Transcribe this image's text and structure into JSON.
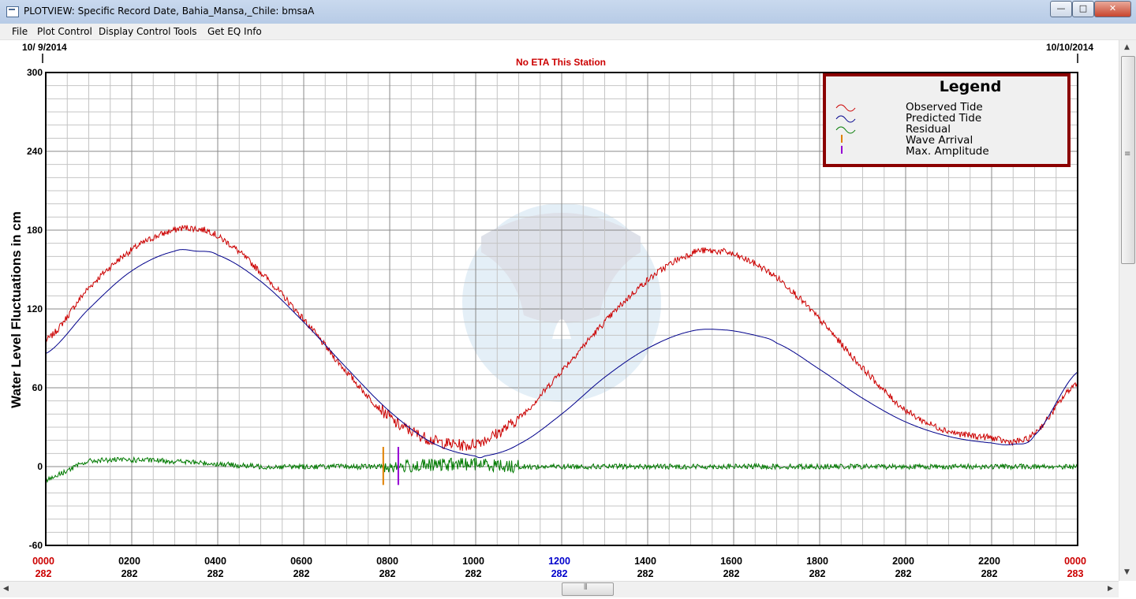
{
  "window": {
    "title": "PLOTVIEW: Specific Record Date, Bahia_Mansa,_Chile: bmsaA",
    "minimize_label": "—",
    "maximize_label": "□",
    "close_label": "✕"
  },
  "menu": [
    {
      "label": "File"
    },
    {
      "label": "Plot Control"
    },
    {
      "label": "Display Control"
    },
    {
      "label": "Tools"
    },
    {
      "label": "Get EQ Info"
    }
  ],
  "plot": {
    "start_date": "10/ 9/2014",
    "end_date": "10/10/2014",
    "eta_message": "No ETA This Station",
    "y_axis_label": "Water Level Fluctuations in cm",
    "colors": {
      "observed": "#cc0000",
      "predicted": "#00008b",
      "residual": "#007a00",
      "wave_arrival": "#e08000",
      "max_amplitude": "#9400d3",
      "frame": "#000000",
      "grid": "#9e9e9e",
      "legend_border": "#8b0000",
      "eta_text": "#cc0000"
    }
  },
  "legend": {
    "title": "Legend",
    "items": [
      {
        "label": "Observed Tide"
      },
      {
        "label": "Predicted Tide"
      },
      {
        "label": "Residual"
      },
      {
        "label": "Wave Arrival"
      },
      {
        "label": "Max. Amplitude"
      }
    ]
  },
  "chart_data": {
    "type": "line",
    "xlabel": "",
    "ylabel": "Water Level Fluctuations in cm",
    "xlim": [
      0,
      24
    ],
    "ylim": [
      -60,
      300
    ],
    "y_ticks": [
      300,
      240,
      180,
      120,
      60,
      0,
      -60
    ],
    "x_ticks": [
      {
        "time": "0000",
        "day": "282",
        "color": "#cc0000"
      },
      {
        "time": "0200",
        "day": "282",
        "color": "#000000"
      },
      {
        "time": "0400",
        "day": "282",
        "color": "#000000"
      },
      {
        "time": "0600",
        "day": "282",
        "color": "#000000"
      },
      {
        "time": "0800",
        "day": "282",
        "color": "#000000"
      },
      {
        "time": "1000",
        "day": "282",
        "color": "#000000"
      },
      {
        "time": "1200",
        "day": "282",
        "color": "#0000cc"
      },
      {
        "time": "1400",
        "day": "282",
        "color": "#000000"
      },
      {
        "time": "1600",
        "day": "282",
        "color": "#000000"
      },
      {
        "time": "1800",
        "day": "282",
        "color": "#000000"
      },
      {
        "time": "2000",
        "day": "282",
        "color": "#000000"
      },
      {
        "time": "2200",
        "day": "282",
        "color": "#000000"
      },
      {
        "time": "0000",
        "day": "283",
        "color": "#cc0000"
      }
    ],
    "series": [
      {
        "name": "Observed Tide",
        "color": "#cc0000",
        "x": [
          0,
          1,
          2,
          3,
          3.5,
          4,
          5,
          6,
          7,
          8,
          8.5,
          9,
          9.5,
          10,
          11,
          12,
          13,
          14,
          15,
          15.5,
          16,
          17,
          18,
          19,
          20,
          21,
          22,
          22.5,
          23,
          24
        ],
        "y": [
          96,
          136,
          165,
          180,
          181,
          175,
          148,
          112,
          72,
          38,
          27,
          20,
          17,
          18,
          37,
          73,
          110,
          142,
          162,
          164,
          161,
          144,
          112,
          75,
          43,
          27,
          22,
          19,
          26,
          64
        ]
      },
      {
        "name": "Predicted Tide",
        "color": "#00008b",
        "x": [
          0,
          1,
          2,
          3,
          3.5,
          4,
          5,
          6,
          7,
          8,
          9,
          10,
          10.2,
          11,
          12,
          13,
          14,
          15,
          15.8,
          16.5,
          17,
          18,
          19,
          20,
          21,
          22,
          22.5,
          23,
          24
        ],
        "y": [
          86,
          120,
          149,
          164,
          164,
          161,
          141,
          110,
          75,
          42,
          18,
          8,
          8,
          17,
          40,
          68,
          90,
          103,
          104,
          100,
          94,
          74,
          52,
          34,
          23,
          18,
          17,
          24,
          72
        ]
      },
      {
        "name": "Residual",
        "color": "#007a00",
        "x": [
          0,
          0.5,
          1,
          2,
          3,
          4,
          5,
          6,
          7,
          8,
          9,
          10,
          11,
          12,
          14,
          16,
          18,
          20,
          22,
          24
        ],
        "y": [
          -10,
          -3,
          4,
          5,
          4,
          2,
          0,
          0,
          0,
          0,
          1,
          2,
          0,
          0,
          0,
          0,
          0,
          0,
          0,
          0
        ]
      }
    ],
    "markers": [
      {
        "name": "Wave Arrival",
        "x": 7.85,
        "y_range": [
          -14,
          15
        ]
      },
      {
        "name": "Max. Amplitude",
        "x": 8.2,
        "y_range": [
          -14,
          15
        ]
      }
    ]
  }
}
